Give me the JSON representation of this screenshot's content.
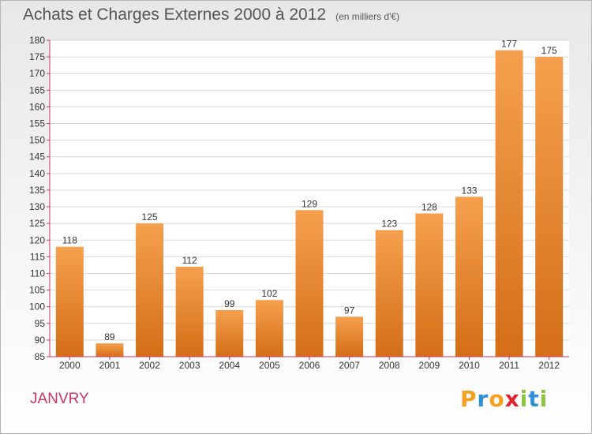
{
  "title": "Achats et Charges Externes 2000 à 2012",
  "subtitle": "(en milliers d'€)",
  "commune": "JANVRY",
  "logo": {
    "text": "Proxiti",
    "letters": [
      {
        "ch": "P",
        "color": "#f5a020"
      },
      {
        "ch": "r",
        "color": "#2e8fd6"
      },
      {
        "ch": "o",
        "color": "#f5a020"
      },
      {
        "ch": "x",
        "color": "#e0232b"
      },
      {
        "ch": "i",
        "color": "#8cc63f"
      },
      {
        "ch": "t",
        "color": "#2e8fd6"
      },
      {
        "ch": "i",
        "color": "#8cc63f"
      }
    ]
  },
  "colors": {
    "bar_top": "#f5a04e",
    "bar_bottom": "#d46e17",
    "axis": "#c8375f",
    "grid": "#d8d8d8",
    "text": "#333333"
  },
  "chart_data": {
    "type": "bar",
    "categories": [
      "2000",
      "2001",
      "2002",
      "2003",
      "2004",
      "2005",
      "2006",
      "2007",
      "2008",
      "2009",
      "2010",
      "2011",
      "2012"
    ],
    "values": [
      118,
      89,
      125,
      112,
      99,
      102,
      129,
      97,
      123,
      128,
      133,
      177,
      175
    ],
    "ylim": [
      85,
      180
    ],
    "ytick_step": 5,
    "grid": true,
    "xlabel": "",
    "ylabel": ""
  }
}
